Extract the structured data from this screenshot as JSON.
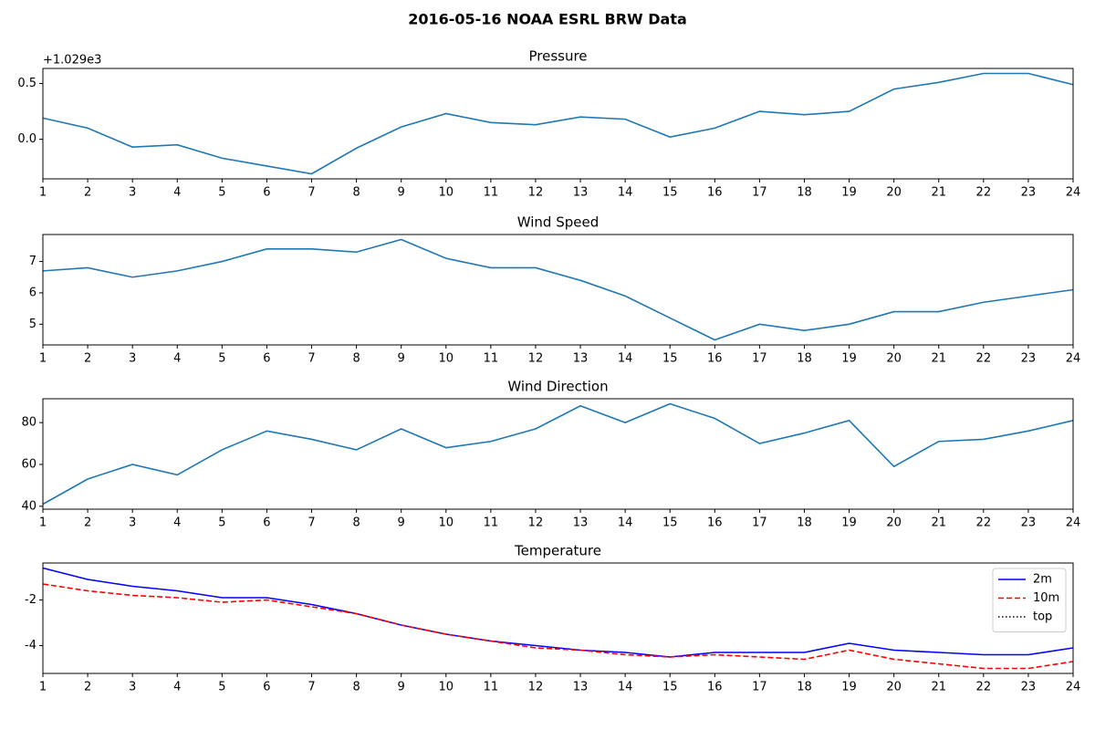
{
  "title": "2016-05-16 NOAA ESRL BRW Data",
  "chart_data": [
    {
      "type": "line",
      "title": "Pressure",
      "offset_label": "+1.029e3",
      "x": [
        1,
        2,
        3,
        4,
        5,
        6,
        7,
        8,
        9,
        10,
        11,
        12,
        13,
        14,
        15,
        16,
        17,
        18,
        19,
        20,
        21,
        22,
        23,
        24
      ],
      "series": [
        {
          "name": "Pressure",
          "color": "#1f77b4",
          "dash": "solid",
          "values": [
            0.19,
            0.1,
            -0.07,
            -0.05,
            -0.17,
            -0.24,
            -0.31,
            -0.08,
            0.11,
            0.23,
            0.15,
            0.13,
            0.2,
            0.18,
            0.02,
            0.1,
            0.25,
            0.22,
            0.25,
            0.45,
            0.51,
            0.59,
            0.59,
            0.49
          ]
        }
      ],
      "xlim": [
        1,
        24
      ],
      "xticks": [
        1,
        2,
        3,
        4,
        5,
        6,
        7,
        8,
        9,
        10,
        11,
        12,
        13,
        14,
        15,
        16,
        17,
        18,
        19,
        20,
        21,
        22,
        23,
        24
      ],
      "ylim": [
        -0.355,
        0.635
      ],
      "yticks": [
        {
          "value": 0,
          "label": "0.0"
        },
        0.5
      ]
    },
    {
      "type": "line",
      "title": "Wind Speed",
      "x": [
        1,
        2,
        3,
        4,
        5,
        6,
        7,
        8,
        9,
        10,
        11,
        12,
        13,
        14,
        15,
        16,
        17,
        18,
        19,
        20,
        21,
        22,
        23,
        24
      ],
      "series": [
        {
          "name": "Wind Speed",
          "color": "#1f77b4",
          "dash": "solid",
          "values": [
            6.7,
            6.8,
            6.5,
            6.7,
            7.0,
            7.4,
            7.4,
            7.3,
            7.7,
            7.1,
            6.8,
            6.8,
            6.4,
            5.9,
            5.2,
            4.5,
            5.0,
            4.8,
            5.0,
            5.4,
            5.4,
            5.7,
            5.9,
            6.1
          ]
        }
      ],
      "xlim": [
        1,
        24
      ],
      "xticks": [
        1,
        2,
        3,
        4,
        5,
        6,
        7,
        8,
        9,
        10,
        11,
        12,
        13,
        14,
        15,
        16,
        17,
        18,
        19,
        20,
        21,
        22,
        23,
        24
      ],
      "ylim": [
        4.34,
        7.86
      ],
      "yticks": [
        5,
        6,
        7
      ]
    },
    {
      "type": "line",
      "title": "Wind Direction",
      "x": [
        1,
        2,
        3,
        4,
        5,
        6,
        7,
        8,
        9,
        10,
        11,
        12,
        13,
        14,
        15,
        16,
        17,
        18,
        19,
        20,
        21,
        22,
        23,
        24
      ],
      "series": [
        {
          "name": "Wind Direction",
          "color": "#1f77b4",
          "dash": "solid",
          "values": [
            41,
            53,
            60,
            55,
            67,
            76,
            72,
            67,
            77,
            68,
            71,
            77,
            88,
            80,
            89,
            82,
            70,
            75,
            81,
            59,
            71,
            72,
            76,
            81
          ]
        }
      ],
      "xlim": [
        1,
        24
      ],
      "xticks": [
        1,
        2,
        3,
        4,
        5,
        6,
        7,
        8,
        9,
        10,
        11,
        12,
        13,
        14,
        15,
        16,
        17,
        18,
        19,
        20,
        21,
        22,
        23,
        24
      ],
      "ylim": [
        38.6,
        91.4
      ],
      "yticks": [
        40,
        60,
        80
      ]
    },
    {
      "type": "line",
      "title": "Temperature",
      "legend": "upper right",
      "x": [
        1,
        2,
        3,
        4,
        5,
        6,
        7,
        8,
        9,
        10,
        11,
        12,
        13,
        14,
        15,
        16,
        17,
        18,
        19,
        20,
        21,
        22,
        23,
        24
      ],
      "series": [
        {
          "name": "2m",
          "color": "#0000ff",
          "dash": "solid",
          "values": [
            -0.6,
            -1.1,
            -1.4,
            -1.6,
            -1.9,
            -1.9,
            -2.2,
            -2.6,
            -3.1,
            -3.5,
            -3.8,
            -4.0,
            -4.2,
            -4.3,
            -4.5,
            -4.3,
            -4.3,
            -4.3,
            -3.9,
            -4.2,
            -4.3,
            -4.4,
            -4.4,
            -4.1
          ]
        },
        {
          "name": "10m",
          "color": "#ff0000",
          "dash": "dashed",
          "values": [
            -1.3,
            -1.6,
            -1.8,
            -1.9,
            -2.1,
            -2.0,
            -2.3,
            -2.6,
            -3.1,
            -3.5,
            -3.8,
            -4.1,
            -4.2,
            -4.4,
            -4.5,
            -4.4,
            -4.5,
            -4.6,
            -4.2,
            -4.6,
            -4.8,
            -5.0,
            -5.0,
            -4.7
          ]
        },
        {
          "name": "top",
          "color": "#000000",
          "dash": "dotted",
          "values": [
            null,
            null,
            null,
            null,
            null,
            null,
            null,
            null,
            null,
            null,
            null,
            null,
            null,
            null,
            null,
            null,
            null,
            null,
            null,
            null,
            null,
            null,
            null,
            null
          ]
        }
      ],
      "xlim": [
        1,
        24
      ],
      "xticks": [
        1,
        2,
        3,
        4,
        5,
        6,
        7,
        8,
        9,
        10,
        11,
        12,
        13,
        14,
        15,
        16,
        17,
        18,
        19,
        20,
        21,
        22,
        23,
        24
      ],
      "ylim": [
        -5.22,
        -0.38
      ],
      "yticks": [
        -4,
        -2
      ]
    }
  ]
}
